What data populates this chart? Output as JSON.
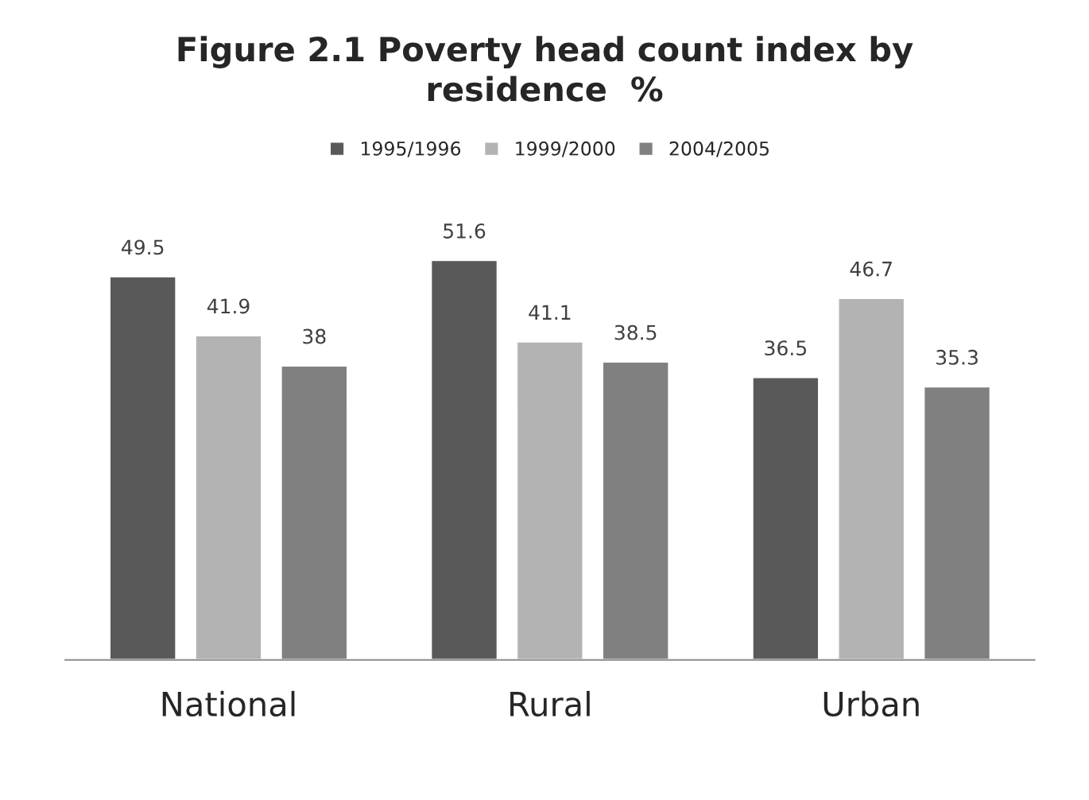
{
  "chart_data": {
    "type": "bar",
    "title": "Figure 2.1 Poverty head count index by\nresidence  %",
    "categories": [
      "National",
      "Rural",
      "Urban"
    ],
    "series": [
      {
        "name": "1995/1996",
        "color": "#595959",
        "values": [
          49.5,
          51.6,
          36.5
        ]
      },
      {
        "name": "1999/2000",
        "color": "#b3b3b3",
        "values": [
          41.9,
          41.1,
          46.7
        ]
      },
      {
        "name": "2004/2005",
        "color": "#808080",
        "values": [
          38,
          38.5,
          35.3
        ]
      }
    ],
    "data_labels": true,
    "legend": "top",
    "grid": false
  }
}
